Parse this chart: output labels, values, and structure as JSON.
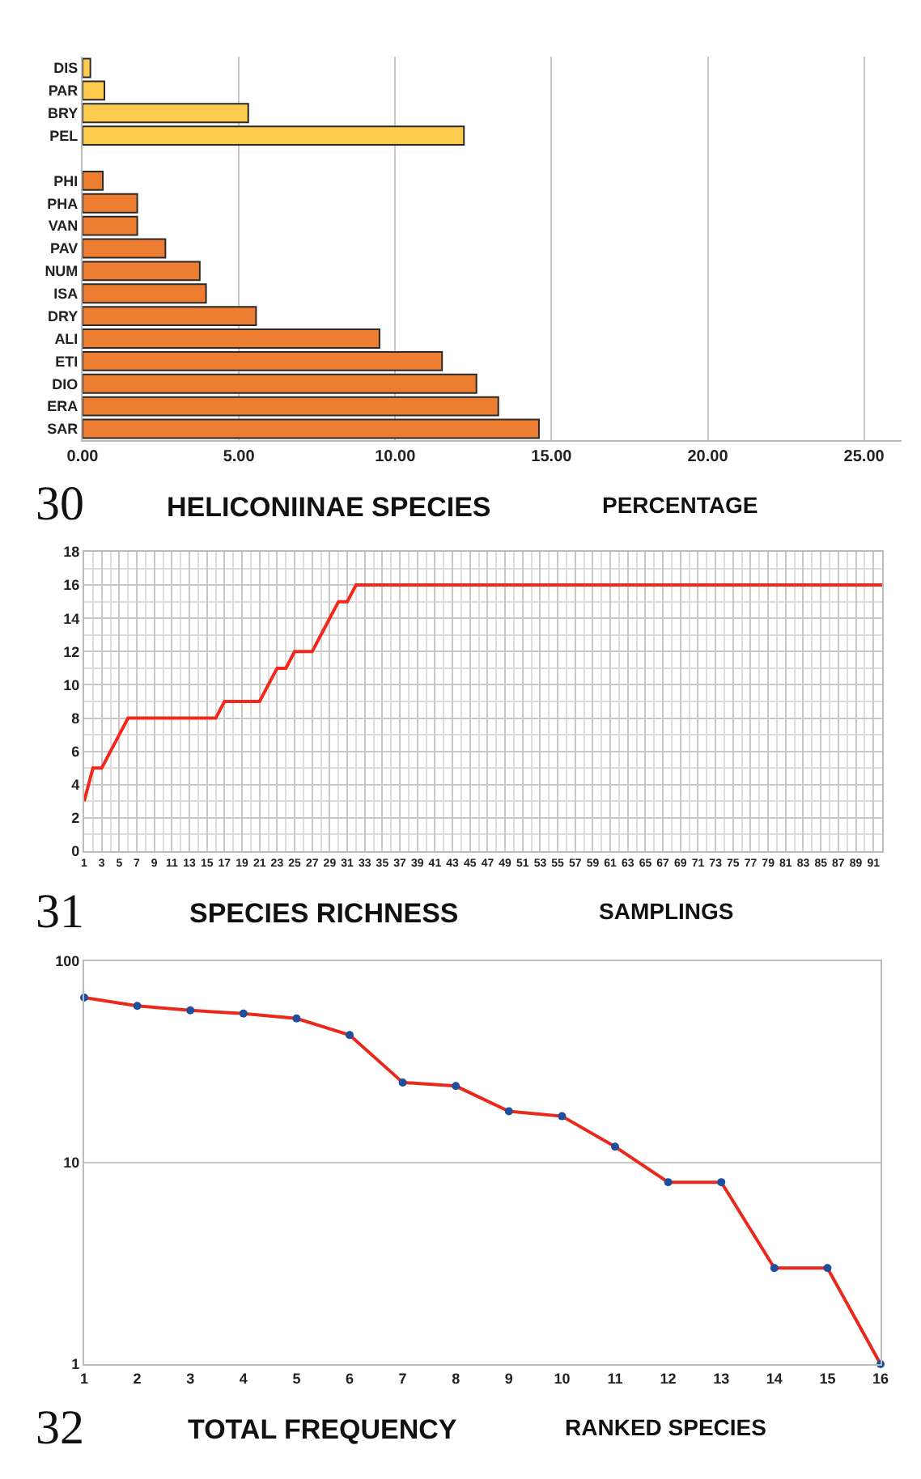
{
  "chart_data": [
    {
      "type": "bar",
      "orientation": "horizontal",
      "title": "30",
      "subtitle": "HELICONIINAE SPECIES",
      "xlabel": "PERCENTAGE",
      "categories": [
        "DIS",
        "PAR",
        "BRY",
        "PEL",
        null,
        "PHI",
        "PHA",
        "VAN",
        "PAV",
        "NUM",
        "ISA",
        "DRY",
        "ALI",
        "ETI",
        "DIO",
        "ERA",
        "SAR"
      ],
      "values": [
        0.25,
        0.7,
        5.3,
        12.2,
        null,
        0.65,
        1.75,
        1.75,
        2.65,
        3.75,
        3.95,
        5.55,
        9.5,
        11.5,
        12.6,
        13.3,
        14.6
      ],
      "colors": [
        "#fdcb4e",
        "#fdcb4e",
        "#fdcb4e",
        "#fdcb4e",
        "#ed7d31",
        "#ed7d31",
        "#ed7d31",
        "#ed7d31",
        "#ed7d31",
        "#ed7d31",
        "#ed7d31",
        "#ed7d31",
        "#ed7d31",
        "#ed7d31",
        "#ed7d31",
        "#ed7d31",
        "#ed7d31"
      ],
      "xlim": [
        0,
        26.2
      ],
      "xticks": [
        {
          "value": 0,
          "label": "0.00"
        },
        {
          "value": 5,
          "label": "5.00"
        },
        {
          "value": 10,
          "label": "10.00"
        },
        {
          "value": 15,
          "label": "15.00"
        },
        {
          "value": 20,
          "label": "20.00"
        },
        {
          "value": 25,
          "label": "25.00"
        }
      ],
      "grid": "x"
    },
    {
      "type": "line",
      "title": "31",
      "subtitle": "SPECIES RICHNESS",
      "xlabel": "SAMPLINGS",
      "color": "#f5261a",
      "x": [
        1,
        2,
        3,
        4,
        5,
        6,
        7,
        8,
        9,
        10,
        11,
        12,
        13,
        14,
        15,
        16,
        17,
        18,
        19,
        20,
        21,
        22,
        23,
        24,
        25,
        26,
        27,
        28,
        29,
        30,
        31,
        32,
        33,
        34,
        35,
        36,
        37,
        38,
        39,
        40,
        41,
        42,
        43,
        44,
        45,
        46,
        47,
        48,
        49,
        50,
        51,
        52,
        53,
        54,
        55,
        56,
        57,
        58,
        59,
        60,
        61,
        62,
        63,
        64,
        65,
        66,
        67,
        68,
        69,
        70,
        71,
        72,
        73,
        74,
        75,
        76,
        77,
        78,
        79,
        80,
        81,
        82,
        83,
        84,
        85,
        86,
        87,
        88,
        89,
        90,
        91,
        92
      ],
      "values": [
        3,
        5,
        5,
        6,
        7,
        8,
        8,
        8,
        8,
        8,
        8,
        8,
        8,
        8,
        8,
        8,
        9,
        9,
        9,
        9,
        9,
        10,
        11,
        11,
        12,
        12,
        12,
        13,
        14,
        15,
        15,
        16,
        16,
        16,
        16,
        16,
        16,
        16,
        16,
        16,
        16,
        16,
        16,
        16,
        16,
        16,
        16,
        16,
        16,
        16,
        16,
        16,
        16,
        16,
        16,
        16,
        16,
        16,
        16,
        16,
        16,
        16,
        16,
        16,
        16,
        16,
        16,
        16,
        16,
        16,
        16,
        16,
        16,
        16,
        16,
        16,
        16,
        16,
        16,
        16,
        16,
        16,
        16,
        16,
        16,
        16,
        16,
        16,
        16,
        16,
        16,
        16
      ],
      "xlim": [
        1,
        92
      ],
      "xticks": [
        1,
        3,
        5,
        7,
        9,
        11,
        13,
        15,
        17,
        19,
        21,
        23,
        25,
        27,
        29,
        31,
        33,
        35,
        37,
        39,
        41,
        43,
        45,
        47,
        49,
        51,
        53,
        55,
        57,
        59,
        61,
        63,
        65,
        67,
        69,
        71,
        73,
        75,
        77,
        79,
        81,
        83,
        85,
        87,
        89,
        91
      ],
      "ylim": [
        0,
        18
      ],
      "yticks": [
        0,
        2,
        4,
        6,
        8,
        10,
        12,
        14,
        16,
        18
      ],
      "grid": true,
      "marker": "none",
      "line_style": "solid"
    },
    {
      "type": "line",
      "title": "32",
      "subtitle": "TOTAL FREQUENCY",
      "xlabel": "RANKED SPECIES",
      "color": "#e8291c",
      "colors": [
        "#1f4e9c",
        "#1f4e9c",
        "#1f4e9c",
        "#1f4e9c",
        "#1f4e9c",
        "#1f4e9c",
        "#1f4e9c",
        "#1f4e9c",
        "#1f4e9c",
        "#1f4e9c",
        "#1f4e9c",
        "#1f4e9c",
        "#1f4e9c",
        "#1f4e9c",
        "#1f4e9c",
        "#1f4e9c"
      ],
      "x": [
        1,
        2,
        3,
        4,
        5,
        6,
        7,
        8,
        9,
        10,
        11,
        12,
        13,
        14,
        15,
        16
      ],
      "values": [
        66,
        60,
        57,
        55,
        52,
        43,
        25,
        24,
        18,
        17,
        12,
        8,
        8,
        3,
        3,
        1
      ],
      "xlim": [
        1,
        16
      ],
      "xticks": [
        1,
        2,
        3,
        4,
        5,
        6,
        7,
        8,
        9,
        10,
        11,
        12,
        13,
        14,
        15,
        16
      ],
      "ylim": [
        1,
        100
      ],
      "yticks": [
        1,
        10,
        100
      ],
      "log": true,
      "grid": "y",
      "marker": "circle",
      "line_style": "solid"
    }
  ]
}
